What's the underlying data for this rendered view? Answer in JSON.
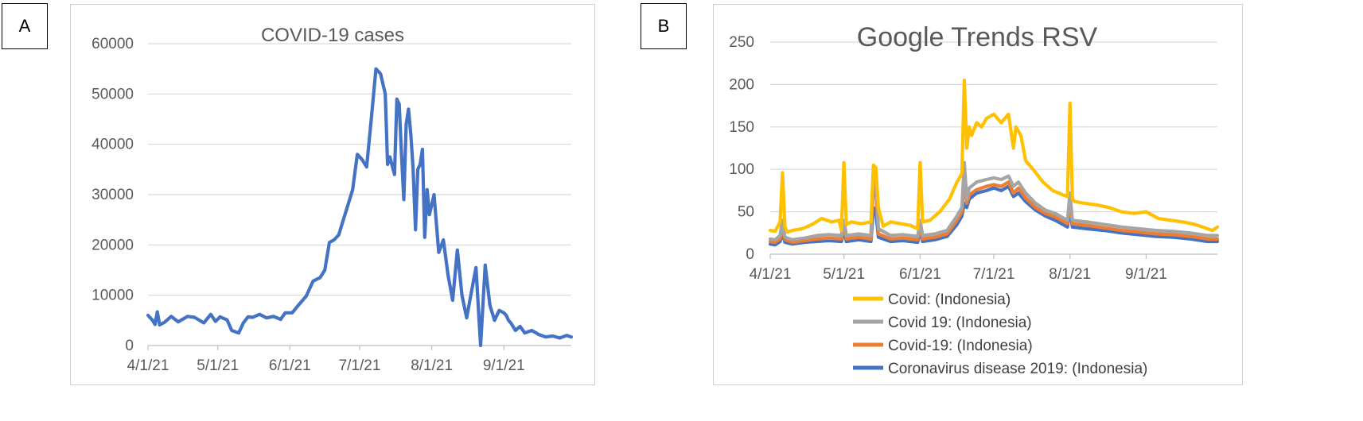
{
  "panel_labels": [
    "A",
    "B"
  ],
  "colors": {
    "gridline": "#d9d9d9",
    "axis": "#bfbfbf",
    "cases_line": "#4472c4",
    "covid": "#ffc000",
    "covid_19_space": "#a5a5a5",
    "covid_19_dash": "#ed7d31",
    "coronavirus_disease": "#4472c4"
  },
  "chart_data": [
    {
      "type": "line",
      "title": "COVID-19 cases",
      "x_is_date": true,
      "x_range": [
        "4/1/21",
        "9/30/21"
      ],
      "x_ticks": [
        "4/1/21",
        "5/1/21",
        "6/1/21",
        "7/1/21",
        "8/1/21",
        "9/1/21"
      ],
      "ylim": [
        0,
        60000
      ],
      "y_ticks": [
        0,
        10000,
        20000,
        30000,
        40000,
        50000,
        60000
      ],
      "grid": true,
      "series": [
        {
          "x": [
            "4/1/21",
            "4/3/21",
            "4/4/21",
            "4/5/21",
            "4/6/21",
            "4/8/21",
            "4/11/21",
            "4/14/21",
            "4/18/21",
            "4/21/21",
            "4/25/21",
            "4/28/21",
            "4/30/21",
            "5/2/21",
            "5/5/21",
            "5/7/21",
            "5/10/21",
            "5/12/21",
            "5/14/21",
            "5/16/21",
            "5/19/21",
            "5/22/21",
            "5/25/21",
            "5/28/21",
            "5/30/21",
            "6/2/21",
            "6/5/21",
            "6/8/21",
            "6/11/21",
            "6/14/21",
            "6/16/21",
            "6/18/21",
            "6/20/21",
            "6/22/21",
            "6/24/21",
            "6/26/21",
            "6/28/21",
            "6/30/21",
            "7/2/21",
            "7/4/21",
            "7/6/21",
            "7/8/21",
            "7/10/21",
            "7/12/21",
            "7/13/21",
            "7/14/21",
            "7/16/21",
            "7/17/21",
            "7/18/21",
            "7/19/21",
            "7/20/21",
            "7/21/21",
            "7/22/21",
            "7/23/21",
            "7/24/21",
            "7/25/21",
            "7/26/21",
            "7/27/21",
            "7/28/21",
            "7/29/21",
            "7/30/21",
            "7/31/21",
            "8/2/21",
            "8/4/21",
            "8/6/21",
            "8/8/21",
            "8/10/21",
            "8/12/21",
            "8/14/21",
            "8/16/21",
            "8/18/21",
            "8/20/21",
            "8/22/21",
            "8/24/21",
            "8/26/21",
            "8/28/21",
            "8/30/21",
            "9/1/21",
            "9/2/21",
            "9/3/21",
            "9/4/21",
            "9/6/21",
            "9/8/21",
            "9/10/21",
            "9/13/21",
            "9/16/21",
            "9/19/21",
            "9/22/21",
            "9/25/21",
            "9/28/21",
            "9/30/21"
          ],
          "values": [
            6000,
            5000,
            4200,
            6700,
            4100,
            4600,
            5800,
            4700,
            5800,
            5600,
            4500,
            6200,
            4800,
            5700,
            5100,
            3000,
            2500,
            4500,
            5700,
            5600,
            6200,
            5500,
            5800,
            5200,
            6500,
            6500,
            8200,
            9800,
            12800,
            13500,
            15000,
            20500,
            21000,
            22000,
            25000,
            28000,
            31000,
            38000,
            37000,
            35500,
            45000,
            55000,
            54000,
            50000,
            36000,
            37500,
            34000,
            49000,
            48000,
            38000,
            29000,
            44000,
            47000,
            42000,
            35000,
            23000,
            35000,
            36000,
            39000,
            21500,
            31000,
            26000,
            30000,
            18500,
            21000,
            14000,
            9000,
            19000,
            10000,
            5500,
            10500,
            15500,
            0,
            16000,
            8000,
            5000,
            7000,
            6500,
            6000,
            5000,
            4500,
            3000,
            3800,
            2500,
            3000,
            2200,
            1700,
            1900,
            1500,
            2000,
            1700
          ]
        }
      ]
    },
    {
      "type": "line",
      "title": "Google Trends RSV",
      "x_is_date": true,
      "x_range": [
        "4/1/21",
        "9/30/21"
      ],
      "x_ticks": [
        "4/1/21",
        "5/1/21",
        "6/1/21",
        "7/1/21",
        "8/1/21",
        "9/1/21"
      ],
      "ylim": [
        0,
        250
      ],
      "y_ticks": [
        0,
        50,
        100,
        150,
        200,
        250
      ],
      "grid": true,
      "legend_position": "bottom",
      "series": [
        {
          "name": "Covid: (Indonesia)",
          "x": [
            "4/1/21",
            "4/3/21",
            "4/5/21",
            "4/6/21",
            "4/7/21",
            "4/8/21",
            "4/10/21",
            "4/14/21",
            "4/18/21",
            "4/22/21",
            "4/26/21",
            "4/29/21",
            "4/30/21",
            "5/1/21",
            "5/2/21",
            "5/4/21",
            "5/8/21",
            "5/12/21",
            "5/13/21",
            "5/14/21",
            "5/15/21",
            "5/17/21",
            "5/20/21",
            "5/24/21",
            "5/28/21",
            "5/31/21",
            "6/1/21",
            "6/2/21",
            "6/5/21",
            "6/9/21",
            "6/13/21",
            "6/16/21",
            "6/18/21",
            "6/19/21",
            "6/20/21",
            "6/21/21",
            "6/22/21",
            "6/24/21",
            "6/26/21",
            "6/28/21",
            "7/1/21",
            "7/4/21",
            "7/7/21",
            "7/9/21",
            "7/10/21",
            "7/12/21",
            "7/14/21",
            "7/17/21",
            "7/21/21",
            "7/25/21",
            "7/29/21",
            "7/31/21",
            "8/1/21",
            "8/2/21",
            "8/3/21",
            "8/7/21",
            "8/12/21",
            "8/17/21",
            "8/22/21",
            "8/27/21",
            "9/1/21",
            "9/6/21",
            "9/11/21",
            "9/16/21",
            "9/21/21",
            "9/26/21",
            "9/28/21",
            "9/30/21"
          ],
          "values": [
            28,
            27,
            38,
            96,
            32,
            26,
            28,
            30,
            35,
            42,
            38,
            40,
            28,
            108,
            35,
            38,
            36,
            38,
            105,
            102,
            55,
            33,
            38,
            36,
            34,
            30,
            108,
            38,
            40,
            50,
            65,
            85,
            95,
            205,
            125,
            150,
            140,
            155,
            150,
            160,
            165,
            155,
            165,
            125,
            150,
            140,
            110,
            100,
            85,
            75,
            70,
            68,
            178,
            65,
            62,
            60,
            58,
            55,
            50,
            48,
            50,
            42,
            40,
            38,
            35,
            30,
            28,
            32
          ]
        },
        {
          "name": "Covid 19: (Indonesia)",
          "x": [
            "4/1/21",
            "4/3/21",
            "4/5/21",
            "4/6/21",
            "4/7/21",
            "4/10/21",
            "4/15/21",
            "4/20/21",
            "4/25/21",
            "4/30/21",
            "5/1/21",
            "5/2/21",
            "5/7/21",
            "5/12/21",
            "5/13/21",
            "5/14/21",
            "5/15/21",
            "5/20/21",
            "5/25/21",
            "5/31/21",
            "6/1/21",
            "6/2/21",
            "6/7/21",
            "6/12/21",
            "6/16/21",
            "6/18/21",
            "6/19/21",
            "6/20/21",
            "6/21/21",
            "6/24/21",
            "6/28/21",
            "7/1/21",
            "7/4/21",
            "7/7/21",
            "7/9/21",
            "7/11/21",
            "7/14/21",
            "7/18/21",
            "7/22/21",
            "7/26/21",
            "7/31/21",
            "8/1/21",
            "8/2/21",
            "8/8/21",
            "8/15/21",
            "8/22/21",
            "8/29/21",
            "9/5/21",
            "9/12/21",
            "9/19/21",
            "9/26/21",
            "9/30/21"
          ],
          "values": [
            18,
            17,
            22,
            40,
            20,
            17,
            19,
            22,
            23,
            22,
            40,
            22,
            24,
            22,
            98,
            95,
            30,
            22,
            23,
            21,
            40,
            22,
            24,
            28,
            45,
            55,
            108,
            65,
            78,
            85,
            88,
            90,
            88,
            92,
            80,
            85,
            72,
            60,
            52,
            48,
            40,
            72,
            40,
            38,
            35,
            32,
            30,
            28,
            27,
            25,
            22,
            22
          ]
        },
        {
          "name": "Covid-19: (Indonesia)",
          "x": [
            "4/1/21",
            "4/3/21",
            "4/5/21",
            "4/6/21",
            "4/7/21",
            "4/10/21",
            "4/15/21",
            "4/20/21",
            "4/25/21",
            "4/30/21",
            "5/1/21",
            "5/2/21",
            "5/7/21",
            "5/12/21",
            "5/13/21",
            "5/14/21",
            "5/15/21",
            "5/20/21",
            "5/25/21",
            "5/31/21",
            "6/1/21",
            "6/2/21",
            "6/7/21",
            "6/12/21",
            "6/16/21",
            "6/18/21",
            "6/19/21",
            "6/20/21",
            "6/21/21",
            "6/24/21",
            "6/28/21",
            "7/1/21",
            "7/4/21",
            "7/7/21",
            "7/9/21",
            "7/11/21",
            "7/14/21",
            "7/18/21",
            "7/22/21",
            "7/26/21",
            "7/31/21",
            "8/1/21",
            "8/2/21",
            "8/8/21",
            "8/15/21",
            "8/22/21",
            "8/29/21",
            "9/5/21",
            "9/12/21",
            "9/19/21",
            "9/26/21",
            "9/30/21"
          ],
          "values": [
            15,
            14,
            18,
            32,
            17,
            14,
            16,
            18,
            19,
            18,
            34,
            18,
            20,
            18,
            80,
            78,
            24,
            18,
            19,
            17,
            33,
            18,
            20,
            24,
            40,
            50,
            88,
            60,
            70,
            76,
            80,
            82,
            80,
            85,
            72,
            78,
            66,
            55,
            48,
            44,
            36,
            64,
            36,
            34,
            31,
            28,
            26,
            24,
            23,
            21,
            18,
            18
          ]
        },
        {
          "name": "Coronavirus disease 2019: (Indonesia)",
          "x": [
            "4/1/21",
            "4/3/21",
            "4/5/21",
            "4/6/21",
            "4/7/21",
            "4/10/21",
            "4/15/21",
            "4/20/21",
            "4/25/21",
            "4/30/21",
            "5/1/21",
            "5/2/21",
            "5/7/21",
            "5/12/21",
            "5/13/21",
            "5/14/21",
            "5/15/21",
            "5/20/21",
            "5/25/21",
            "5/31/21",
            "6/1/21",
            "6/2/21",
            "6/7/21",
            "6/12/21",
            "6/16/21",
            "6/18/21",
            "6/19/21",
            "6/20/21",
            "6/21/21",
            "6/24/21",
            "6/28/21",
            "7/1/21",
            "7/4/21",
            "7/7/21",
            "7/9/21",
            "7/11/21",
            "7/14/21",
            "7/18/21",
            "7/22/21",
            "7/26/21",
            "7/31/21",
            "8/1/21",
            "8/2/21",
            "8/8/21",
            "8/15/21",
            "8/22/21",
            "8/29/21",
            "9/5/21",
            "9/12/21",
            "9/19/21",
            "9/26/21",
            "9/30/21"
          ],
          "values": [
            12,
            11,
            15,
            25,
            14,
            12,
            14,
            15,
            16,
            15,
            28,
            15,
            17,
            15,
            55,
            50,
            20,
            15,
            16,
            14,
            28,
            15,
            17,
            21,
            35,
            45,
            60,
            55,
            65,
            72,
            75,
            78,
            75,
            80,
            68,
            72,
            62,
            52,
            45,
            40,
            32,
            55,
            32,
            30,
            28,
            25,
            23,
            21,
            20,
            18,
            15,
            15
          ]
        }
      ]
    }
  ]
}
